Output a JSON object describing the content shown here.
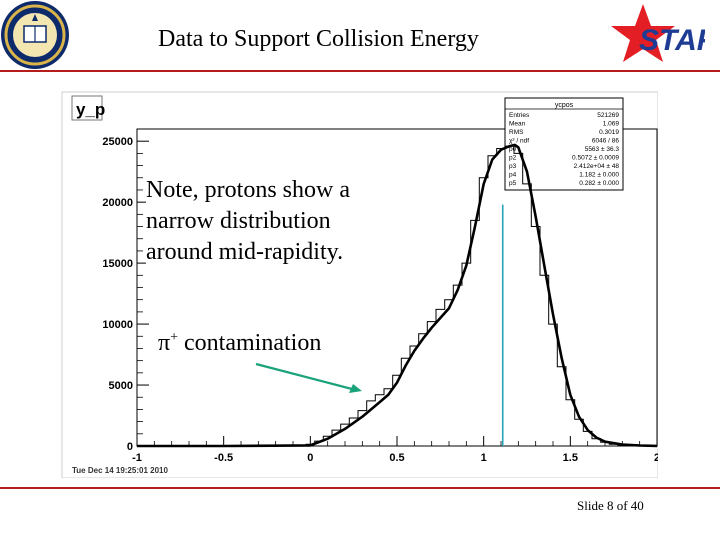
{
  "slide": {
    "title": "Data to Support Collision Energy",
    "footer": "Slide 8 of 40",
    "star_logo_text": "STAR",
    "colors": {
      "rule": "#b71c1c",
      "star": "#e31e24",
      "logo_text": "#1f3c95",
      "annotation_arrow": "#1aa37a",
      "cut_line": "#29a3b8"
    }
  },
  "annotations": {
    "note_lines": [
      "Note, protons show a",
      "narrow distribution",
      "around mid-rapidity."
    ],
    "pi_symbol": "π",
    "pi_charge": "+",
    "pi_word": "contamination"
  },
  "stats_box": {
    "title": "ycpos",
    "rows": [
      {
        "label": "Entries",
        "value": "521269"
      },
      {
        "label": "Mean",
        "value": "1.069"
      },
      {
        "label": "RMS",
        "value": "0.3019"
      },
      {
        "label": "χ² / ndf",
        "value": "6046 / 86"
      },
      {
        "label": "p0",
        "value": "5563 ± 36.3"
      },
      {
        "label": "p2",
        "value": "0.5072 ± 0.0009"
      },
      {
        "label": "p3",
        "value": "2.412e+04 ± 48"
      },
      {
        "label": "p4",
        "value": "1.182 ± 0.000"
      },
      {
        "label": "p5",
        "value": "0.282 ± 0.000"
      }
    ]
  },
  "chart_data": {
    "type": "line",
    "ylabel": "y_p",
    "timestamp": "Tue Dec 14 19:25:01 2010",
    "xlim": [
      -1,
      2
    ],
    "ylim": [
      0,
      26000
    ],
    "x_ticks": [
      "-1",
      "-0.5",
      "0",
      "0.5",
      "1",
      "1.5",
      "2"
    ],
    "y_ticks": [
      "0",
      "5000",
      "10000",
      "15000",
      "20000",
      "25000"
    ],
    "vertical_marker_x": 1.11,
    "series": [
      {
        "style": "histogram",
        "x": [
          -0.95,
          -0.85,
          -0.75,
          -0.65,
          -0.55,
          -0.45,
          -0.35,
          -0.25,
          -0.15,
          -0.05,
          0.0,
          0.05,
          0.1,
          0.15,
          0.2,
          0.25,
          0.3,
          0.35,
          0.4,
          0.45,
          0.5,
          0.55,
          0.6,
          0.65,
          0.7,
          0.75,
          0.8,
          0.85,
          0.9,
          0.95,
          1.0,
          1.05,
          1.1,
          1.15,
          1.2,
          1.25,
          1.3,
          1.35,
          1.4,
          1.45,
          1.5,
          1.55,
          1.6,
          1.65,
          1.7,
          1.75,
          1.8,
          1.85,
          1.9,
          1.95
        ],
        "y": [
          0,
          0,
          0,
          0,
          0,
          0,
          0,
          0,
          0,
          50,
          150,
          400,
          800,
          1300,
          1800,
          2300,
          2900,
          3700,
          4200,
          4700,
          5800,
          7200,
          8200,
          9200,
          10200,
          11200,
          12000,
          13200,
          15000,
          18500,
          22000,
          23800,
          24400,
          24600,
          24000,
          21500,
          18000,
          14000,
          10000,
          6500,
          3800,
          2200,
          1200,
          600,
          300,
          150,
          60,
          20,
          0,
          0
        ]
      },
      {
        "style": "fit",
        "x": [
          -1.0,
          -0.5,
          0.0,
          0.1,
          0.2,
          0.3,
          0.4,
          0.45,
          0.5,
          0.55,
          0.6,
          0.65,
          0.7,
          0.75,
          0.8,
          0.85,
          0.9,
          0.95,
          1.0,
          1.05,
          1.1,
          1.15,
          1.18,
          1.2,
          1.25,
          1.3,
          1.35,
          1.4,
          1.45,
          1.5,
          1.55,
          1.6,
          1.65,
          1.7,
          1.8,
          1.9,
          2.0
        ],
        "y": [
          0,
          0,
          50,
          600,
          1400,
          2400,
          3600,
          4200,
          5200,
          6600,
          7800,
          8800,
          9700,
          10500,
          11300,
          12800,
          14800,
          18000,
          21500,
          23500,
          24300,
          24600,
          24700,
          24500,
          22500,
          18800,
          14800,
          10800,
          7200,
          4200,
          2400,
          1300,
          700,
          350,
          120,
          40,
          10
        ]
      }
    ]
  }
}
